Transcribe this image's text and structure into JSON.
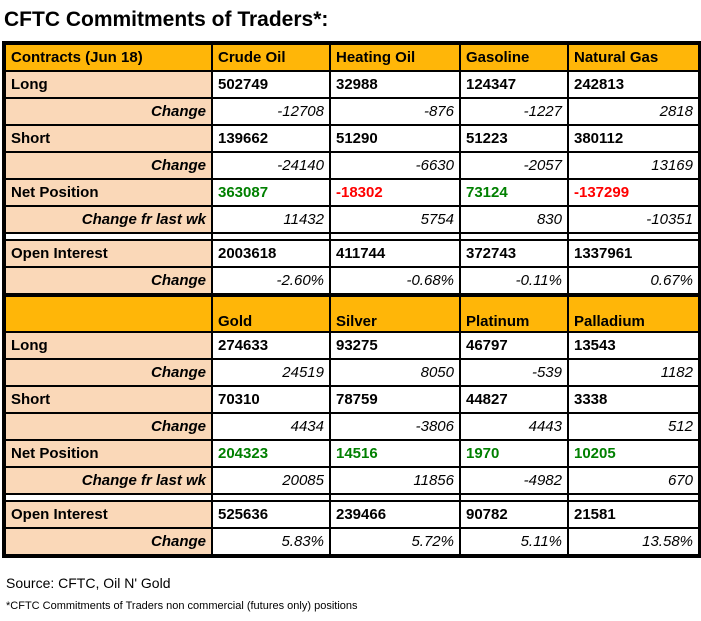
{
  "title": "CFTC Commitments of Traders*:",
  "footer": {
    "source": "Source: CFTC, Oil N' Gold",
    "note": "*CFTC Commitments of Traders non commercial (futures only) positions"
  },
  "colors": {
    "header_bg": "#FFB608",
    "label_bg": "#FAD8B8",
    "positive_value": "#008000",
    "negative_value": "#FF0000",
    "border": "#000000"
  },
  "chart_data": {
    "type": "table",
    "title": "CFTC Commitments of Traders*:",
    "sections": [
      {
        "name": "energy",
        "header": {
          "type": "header",
          "cells": [
            "Contracts (Jun 18)",
            "Crude Oil",
            "Heating Oil",
            "Gasoline",
            "Natural Gas"
          ]
        },
        "rows": [
          {
            "type": "data",
            "cells": [
              "Long",
              "502749",
              "32988",
              "124347",
              "242813"
            ]
          },
          {
            "type": "change",
            "cells": [
              "Change",
              "-12708",
              "-876",
              "-1227",
              "2818"
            ]
          },
          {
            "type": "data",
            "cells": [
              "Short",
              "139662",
              "51290",
              "51223",
              "380112"
            ]
          },
          {
            "type": "change",
            "cells": [
              "Change",
              "-24140",
              "-6630",
              "-2057",
              "13169"
            ]
          },
          {
            "type": "net",
            "cells": [
              "Net Position",
              "363087",
              "-18302",
              "73124",
              "-137299"
            ]
          },
          {
            "type": "change",
            "cells": [
              "Change fr last wk",
              "11432",
              "5754",
              "830",
              "-10351"
            ]
          },
          {
            "type": "spacer",
            "cells": [
              "",
              "",
              "",
              "",
              ""
            ]
          },
          {
            "type": "data",
            "cells": [
              "Open Interest",
              "2003618",
              "411744",
              "372743",
              "1337961"
            ]
          },
          {
            "type": "change",
            "cells": [
              "Change",
              "-2.60%",
              "-0.68%",
              "-0.11%",
              "0.67%"
            ]
          }
        ]
      },
      {
        "name": "metals",
        "header": {
          "type": "header tall",
          "cells": [
            "",
            "Gold",
            "Silver",
            "Platinum",
            "Palladium"
          ]
        },
        "rows": [
          {
            "type": "data",
            "cells": [
              "Long",
              "274633",
              "93275",
              "46797",
              "13543"
            ]
          },
          {
            "type": "change",
            "cells": [
              "Change",
              "24519",
              "8050",
              "-539",
              "1182"
            ]
          },
          {
            "type": "data",
            "cells": [
              "Short",
              "70310",
              "78759",
              "44827",
              "3338"
            ]
          },
          {
            "type": "change",
            "cells": [
              "Change",
              "4434",
              "-3806",
              "4443",
              "512"
            ]
          },
          {
            "type": "net",
            "cells": [
              "Net Position",
              "204323",
              "14516",
              "1970",
              "10205"
            ]
          },
          {
            "type": "change",
            "cells": [
              "Change fr last wk",
              "20085",
              "11856",
              "-4982",
              "670"
            ]
          },
          {
            "type": "spacer",
            "cells": [
              "",
              "",
              "",
              "",
              ""
            ]
          },
          {
            "type": "data",
            "cells": [
              "Open Interest",
              "525636",
              "239466",
              "90782",
              "21581"
            ]
          },
          {
            "type": "change",
            "cells": [
              "Change",
              "5.83%",
              "5.72%",
              "5.11%",
              "13.58%"
            ]
          }
        ]
      }
    ]
  }
}
